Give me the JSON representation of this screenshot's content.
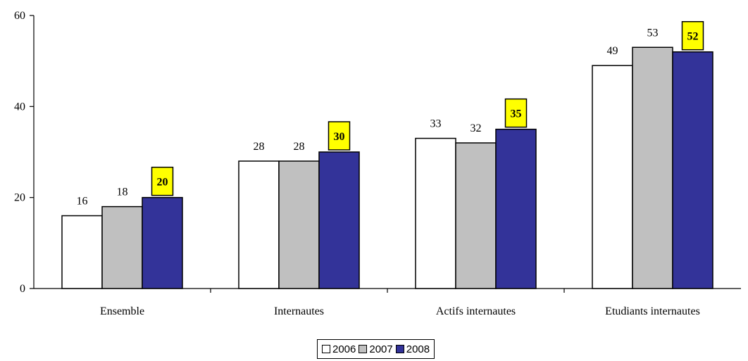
{
  "chart_data": {
    "type": "bar",
    "categories": [
      "Ensemble",
      "Internautes",
      "Actifs internautes",
      "Etudiants internautes"
    ],
    "series": [
      {
        "name": "2006",
        "values": [
          16,
          28,
          33,
          49
        ],
        "color": "#ffffff"
      },
      {
        "name": "2007",
        "values": [
          18,
          28,
          32,
          53
        ],
        "color": "#c0c0c0"
      },
      {
        "name": "2008",
        "values": [
          20,
          30,
          35,
          52
        ],
        "color": "#333399",
        "highlight": true
      }
    ],
    "ylim": [
      0,
      60
    ],
    "yticks": [
      0,
      20,
      40,
      60
    ],
    "highlight_color": "#ffff00",
    "grid": false,
    "legend_position": "bottom-center"
  }
}
